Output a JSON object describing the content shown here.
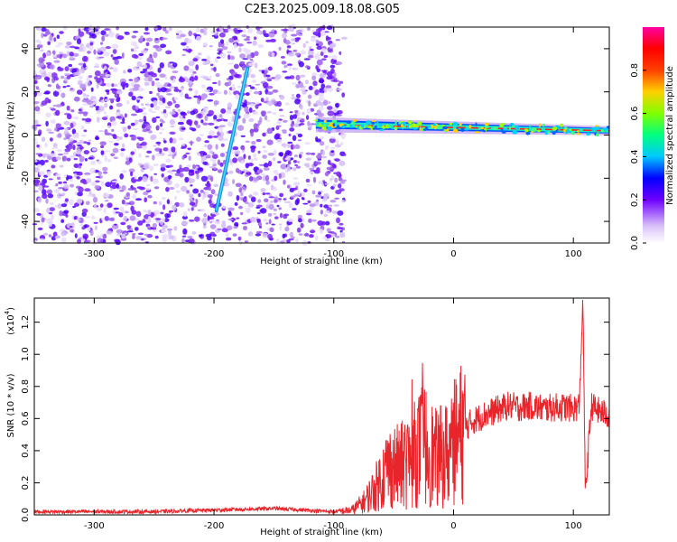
{
  "title": "C2E3.2025.009.18.08.G05",
  "chart_data": [
    {
      "type": "heatmap",
      "xlabel": "Height of straight line (km)",
      "ylabel": "Frequency (Hz)",
      "xlim": [
        -350,
        130
      ],
      "ylim": [
        -50,
        50
      ],
      "x_ticks": [
        -300,
        -200,
        -100,
        0,
        100
      ],
      "y_ticks": [
        -40,
        -20,
        0,
        20,
        40
      ],
      "colorbar": {
        "label": "Normalized spectral amplitude",
        "range": [
          0,
          1
        ],
        "ticks": [
          "0.0",
          "0.2",
          "0.4",
          "0.6",
          "0.8"
        ],
        "colormap": [
          "#ffffff",
          "#b07cf0",
          "#7000ff",
          "#0000ff",
          "#00c8ff",
          "#00ff80",
          "#80ff00",
          "#ffd000",
          "#ff4000",
          "#ff0000",
          "#ff00a0"
        ]
      },
      "features": {
        "noise_region_x": [
          -350,
          -100
        ],
        "diagonal_line": {
          "x": [
            -198,
            -172
          ],
          "y": [
            -35,
            31
          ]
        },
        "carrier_line": {
          "x": [
            -115,
            130
          ],
          "y": [
            5,
            2
          ]
        }
      }
    },
    {
      "type": "line",
      "xlabel": "Height of straight line (km)",
      "ylabel": "SNR (10 * v/v)",
      "y_multiplier": "(x10",
      "y_multiplier_exp": "4",
      "xlim": [
        -350,
        130
      ],
      "ylim": [
        0,
        1.35
      ],
      "x_ticks": [
        -300,
        -200,
        -100,
        0,
        100
      ],
      "y_ticks": [
        "0.0",
        "0.2",
        "0.4",
        "0.6",
        "0.8",
        "1.0",
        "1.2"
      ],
      "series": [
        {
          "color": "#e8252a",
          "x": [
            -350,
            -300,
            -250,
            -200,
            -150,
            -100,
            -85,
            -75,
            -65,
            -55,
            -45,
            -35,
            -25,
            -15,
            -5,
            5,
            15,
            25,
            35,
            45,
            55,
            65,
            75,
            85,
            95,
            100,
            105,
            108,
            110,
            115,
            120,
            130
          ],
          "values": [
            0.02,
            0.02,
            0.02,
            0.03,
            0.04,
            0.02,
            0.03,
            0.08,
            0.17,
            0.3,
            0.3,
            0.35,
            0.45,
            0.35,
            0.38,
            0.5,
            0.58,
            0.62,
            0.65,
            0.68,
            0.67,
            0.68,
            0.66,
            0.67,
            0.67,
            0.66,
            0.68,
            1.35,
            0.12,
            0.68,
            0.65,
            0.62
          ]
        }
      ]
    }
  ]
}
